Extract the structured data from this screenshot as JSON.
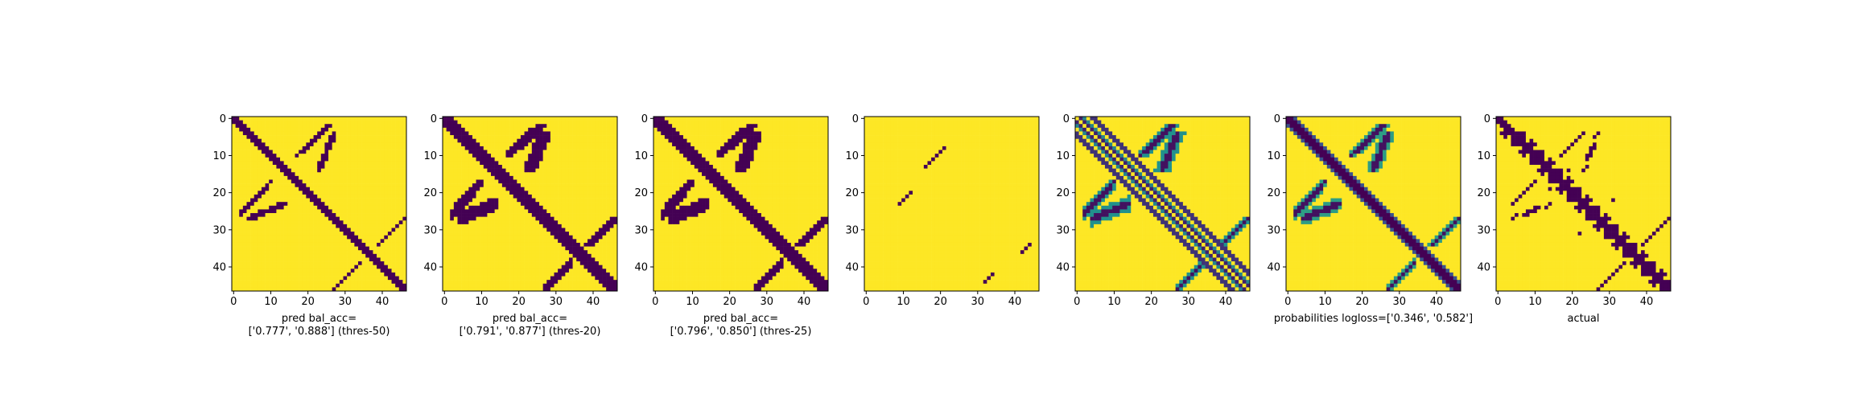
{
  "figure": {
    "background": "#ffffff",
    "colormap": "viridis",
    "panel_colors": {
      "low": "#440154",
      "mid": "#21918c",
      "high": "#fde725"
    }
  },
  "chart_data": [
    {
      "type": "heatmap",
      "grid_size": 47,
      "xticks": [
        0,
        10,
        20,
        30,
        40
      ],
      "yticks": [
        0,
        10,
        20,
        30,
        40
      ],
      "xlabel_lines": [
        "pred bal_acc=",
        "['0.777', '0.888'] (thres-50)"
      ],
      "values": {
        "kind": "binary",
        "diag_width": 1,
        "blobs": true,
        "threshold": 50
      }
    },
    {
      "type": "heatmap",
      "grid_size": 47,
      "xticks": [
        0,
        10,
        20,
        30,
        40
      ],
      "yticks": [
        0,
        10,
        20,
        30,
        40
      ],
      "xlabel_lines": [
        "pred bal_acc=",
        "['0.791', '0.877'] (thres-20)"
      ],
      "values": {
        "kind": "binary",
        "diag_width": 2,
        "blobs": true,
        "threshold": 20
      }
    },
    {
      "type": "heatmap",
      "grid_size": 47,
      "xticks": [
        0,
        10,
        20,
        30,
        40
      ],
      "yticks": [
        0,
        10,
        20,
        30,
        40
      ],
      "xlabel_lines": [
        "pred bal_acc=",
        "['0.796', '0.850'] (thres-25)"
      ],
      "values": {
        "kind": "binary",
        "diag_width": 2,
        "blobs": true,
        "threshold": 25
      }
    },
    {
      "type": "heatmap",
      "grid_size": 47,
      "xticks": [
        0,
        10,
        20,
        30,
        40
      ],
      "yticks": [
        0,
        10,
        20,
        30,
        40
      ],
      "xlabel_lines": [],
      "values": {
        "kind": "sparse",
        "points": [
          [
            8,
            21
          ],
          [
            9,
            20
          ],
          [
            10,
            19
          ],
          [
            11,
            18
          ],
          [
            12,
            17
          ],
          [
            13,
            16
          ],
          [
            21,
            11
          ],
          [
            22,
            10
          ],
          [
            23,
            9
          ],
          [
            20,
            12
          ],
          [
            34,
            44
          ],
          [
            35,
            43
          ],
          [
            36,
            42
          ],
          [
            42,
            34
          ],
          [
            43,
            33
          ],
          [
            44,
            32
          ]
        ]
      }
    },
    {
      "type": "heatmap",
      "grid_size": 47,
      "xticks": [
        0,
        10,
        20,
        30,
        40
      ],
      "yticks": [
        0,
        10,
        20,
        30,
        40
      ],
      "xlabel_lines": [],
      "values": {
        "kind": "probability",
        "style": "offdiag"
      }
    },
    {
      "type": "heatmap",
      "grid_size": 47,
      "xticks": [
        0,
        10,
        20,
        30,
        40
      ],
      "yticks": [
        0,
        10,
        20,
        30,
        40
      ],
      "xlabel_lines": [
        "probabilities logloss=['0.346', '0.582']"
      ],
      "values": {
        "kind": "probability",
        "style": "diag"
      }
    },
    {
      "type": "heatmap",
      "grid_size": 47,
      "xticks": [
        0,
        10,
        20,
        30,
        40
      ],
      "yticks": [
        0,
        10,
        20,
        30,
        40
      ],
      "xlabel_lines": [
        "actual"
      ],
      "values": {
        "kind": "actual"
      }
    }
  ]
}
